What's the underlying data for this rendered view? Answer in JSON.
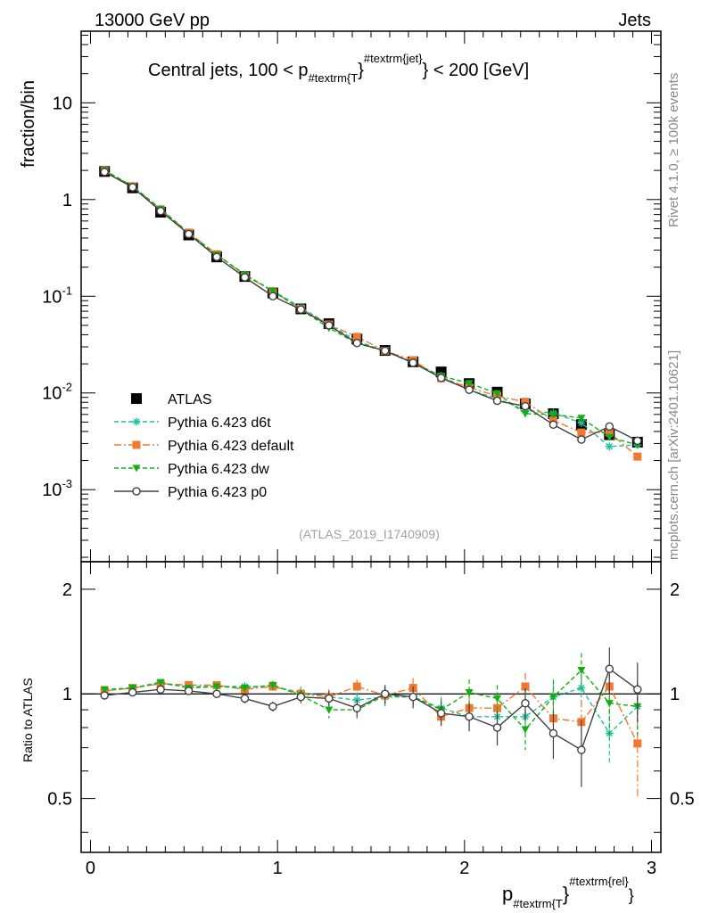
{
  "header": {
    "left": "13000 GeV pp",
    "right": "Jets"
  },
  "side_labels": {
    "rivet": "Rivet 4.1.0, ≥ 100k events",
    "mcplots": "mcplots.cern.ch [arXiv:2401.10621]"
  },
  "watermark": "(ATLAS_2019_I1740909)",
  "title": {
    "pre": "Central jets, 100 < p",
    "sub": "#textrm{T",
    "brace": "}",
    "sup": "#textrm{jet}",
    "post": "} < 200 [GeV]"
  },
  "xaxis": {
    "label_main": "p",
    "label_sub": "#textrm{T",
    "label_brace": "}",
    "label_sup": "#textrm{rel}",
    "label_end": "}"
  },
  "main_yaxis": {
    "label": "fraction/bin",
    "tick_labels": [
      {
        "base": "10",
        "exp": "-3",
        "value": 0.001
      },
      {
        "base": "10",
        "exp": "-2",
        "value": 0.01
      },
      {
        "base": "10",
        "exp": "-1",
        "value": 0.1
      },
      {
        "base": "1",
        "exp": "",
        "value": 1
      },
      {
        "base": "10",
        "exp": "",
        "value": 10
      }
    ]
  },
  "ratio_yaxis": {
    "label": "Ratio to ATLAS",
    "tick_labels": [
      "0.5",
      "1",
      "2"
    ]
  },
  "chart_data": {
    "type": "line",
    "title": "Central jets, 100 < p_T^jet < 200 [GeV]",
    "xlabel": "p_T^rel",
    "ylabel": "fraction/bin",
    "xlim": [
      -0.05,
      3.05
    ],
    "ylim": [
      0.00018,
      55
    ],
    "yscale": "log",
    "x_tick_labels": [
      "0",
      "1",
      "2",
      "3"
    ],
    "x": [
      0.075,
      0.225,
      0.375,
      0.525,
      0.675,
      0.825,
      0.975,
      1.125,
      1.275,
      1.425,
      1.575,
      1.725,
      1.875,
      2.025,
      2.175,
      2.325,
      2.475,
      2.625,
      2.775,
      2.925
    ],
    "legend_position": "lower-left",
    "series": [
      {
        "name": "ATLAS",
        "color": "#000000",
        "marker": "square",
        "values": [
          1.95,
          1.32,
          0.74,
          0.43,
          0.255,
          0.16,
          0.108,
          0.074,
          0.052,
          0.036,
          0.0275,
          0.021,
          0.0165,
          0.0125,
          0.0102,
          0.0077,
          0.0061,
          0.0047,
          0.0037,
          0.0031
        ]
      },
      {
        "name": "Pythia 6.423 d6t",
        "color": "#20c0a0",
        "marker": "star",
        "dash": "dashed",
        "values": [
          2.0,
          1.38,
          0.8,
          0.455,
          0.27,
          0.168,
          0.114,
          0.077,
          0.051,
          0.0345,
          0.027,
          0.0205,
          0.015,
          0.0107,
          0.0088,
          0.0066,
          0.0062,
          0.0049,
          0.0028,
          0.0029
        ]
      },
      {
        "name": "Pythia 6.423 default",
        "color": "#f07830",
        "marker": "square",
        "dash": "dashdot",
        "values": [
          1.99,
          1.37,
          0.79,
          0.455,
          0.272,
          0.164,
          0.113,
          0.074,
          0.051,
          0.038,
          0.0272,
          0.0218,
          0.0142,
          0.0114,
          0.0093,
          0.0081,
          0.0052,
          0.0039,
          0.0039,
          0.0022
        ]
      },
      {
        "name": "Pythia 6.423 dw",
        "color": "#10b010",
        "marker": "triangle-down",
        "dash": "dashed",
        "values": [
          2.01,
          1.37,
          0.8,
          0.445,
          0.268,
          0.167,
          0.113,
          0.073,
          0.047,
          0.0325,
          0.0272,
          0.0205,
          0.015,
          0.0126,
          0.0099,
          0.0061,
          0.006,
          0.0055,
          0.0035,
          0.0029
        ]
      },
      {
        "name": "Pythia 6.423 p0",
        "color": "#404040",
        "marker": "open-circle",
        "dash": "solid",
        "values": [
          1.93,
          1.34,
          0.76,
          0.44,
          0.255,
          0.157,
          0.1,
          0.073,
          0.05,
          0.0328,
          0.0273,
          0.0205,
          0.0143,
          0.0108,
          0.0083,
          0.0073,
          0.0047,
          0.0033,
          0.0045,
          0.0032
        ]
      }
    ],
    "ratio": {
      "ylabel": "Ratio to ATLAS",
      "ylim": [
        0.35,
        2.4
      ],
      "yscale": "log",
      "reference": 1,
      "series": [
        {
          "name": "Pythia 6.423 d6t",
          "values": [
            1.02,
            1.04,
            1.07,
            1.05,
            1.05,
            1.05,
            1.05,
            1.01,
            0.98,
            0.96,
            0.98,
            0.98,
            0.91,
            0.86,
            0.86,
            0.86,
            0.98,
            1.04,
            0.77,
            0.92
          ],
          "errors": [
            0.02,
            0.02,
            0.02,
            0.02,
            0.02,
            0.03,
            0.03,
            0.04,
            0.05,
            0.05,
            0.06,
            0.07,
            0.07,
            0.08,
            0.08,
            0.09,
            0.1,
            0.12,
            0.14,
            0.16
          ]
        },
        {
          "name": "Pythia 6.423 default",
          "values": [
            1.02,
            1.04,
            1.07,
            1.06,
            1.06,
            1.03,
            1.05,
            1.0,
            0.98,
            1.05,
            0.99,
            1.04,
            0.86,
            0.91,
            0.91,
            1.05,
            0.85,
            0.83,
            1.05,
            0.72
          ],
          "errors": [
            0.02,
            0.02,
            0.02,
            0.02,
            0.02,
            0.03,
            0.03,
            0.04,
            0.05,
            0.05,
            0.06,
            0.07,
            0.07,
            0.08,
            0.09,
            0.1,
            0.11,
            0.13,
            0.15,
            0.22
          ]
        },
        {
          "name": "Pythia 6.423 dw",
          "values": [
            1.03,
            1.04,
            1.08,
            1.04,
            1.05,
            1.04,
            1.06,
            0.99,
            0.9,
            0.9,
            0.99,
            0.98,
            0.9,
            1.01,
            0.97,
            0.79,
            0.98,
            1.17,
            0.94,
            0.92
          ],
          "errors": [
            0.02,
            0.02,
            0.02,
            0.02,
            0.02,
            0.03,
            0.03,
            0.04,
            0.05,
            0.05,
            0.06,
            0.07,
            0.07,
            0.09,
            0.09,
            0.1,
            0.12,
            0.14,
            0.2,
            0.16
          ]
        },
        {
          "name": "Pythia 6.423 p0",
          "values": [
            0.99,
            1.01,
            1.03,
            1.02,
            1.0,
            0.97,
            0.92,
            0.98,
            0.97,
            0.91,
            1.0,
            0.98,
            0.88,
            0.86,
            0.8,
            0.94,
            0.77,
            0.69,
            1.18,
            1.03
          ],
          "errors": [
            0.02,
            0.02,
            0.02,
            0.02,
            0.02,
            0.03,
            0.03,
            0.04,
            0.05,
            0.05,
            0.06,
            0.07,
            0.07,
            0.08,
            0.09,
            0.1,
            0.12,
            0.15,
            0.18,
            0.2
          ]
        }
      ]
    }
  }
}
